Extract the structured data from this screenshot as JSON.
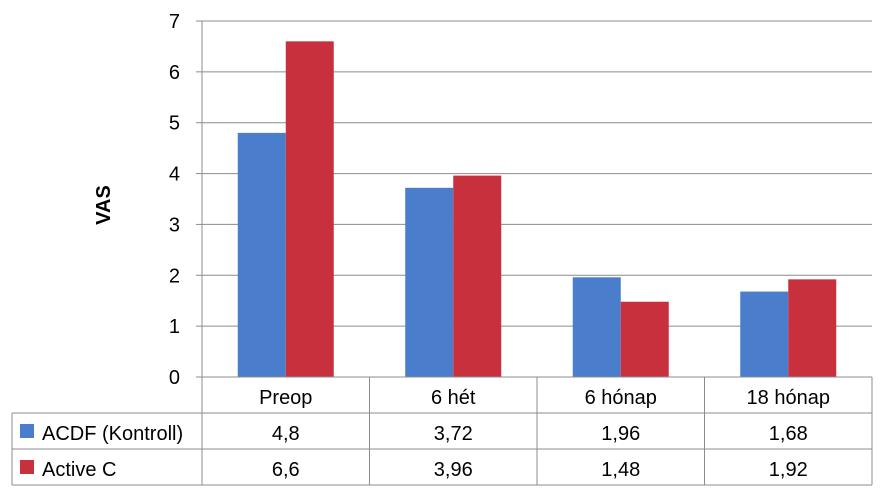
{
  "chart_data": {
    "type": "bar",
    "title": "",
    "xlabel": "",
    "ylabel": "VAS",
    "ylim": [
      0,
      7
    ],
    "yticks": [
      0,
      1,
      2,
      3,
      4,
      5,
      6,
      7
    ],
    "grid": true,
    "legend": "table-left",
    "categories": [
      "Preop",
      "6 hét",
      "6 hónap",
      "18 hónap"
    ],
    "series": [
      {
        "name": "ACDF (Kontroll)",
        "color": "#4a7dcc",
        "values": [
          4.8,
          3.72,
          1.96,
          1.68
        ],
        "labels": [
          "4,8",
          "3,72",
          "1,96",
          "1,68"
        ]
      },
      {
        "name": "Active C",
        "color": "#c8303e",
        "values": [
          6.6,
          3.96,
          1.48,
          1.92
        ],
        "labels": [
          "6,6",
          "3,96",
          "1,48",
          "1,92"
        ]
      }
    ]
  }
}
